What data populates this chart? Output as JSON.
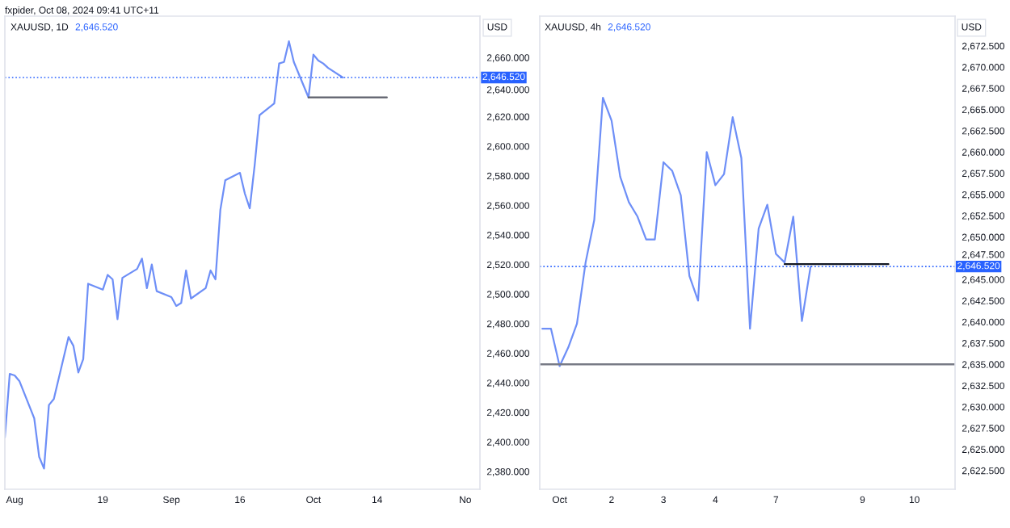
{
  "chart_data": [
    {
      "type": "line",
      "title": "XAUUSD, 1D",
      "subtitle": "2,646.520",
      "ylabel": "USD",
      "annotations": [
        "fxpider, Oct 08, 2024 09:41 UTC+11"
      ],
      "x": [
        "2024-07-30",
        "2024-07-31",
        "2024-08-01",
        "2024-08-02",
        "2024-08-05",
        "2024-08-06",
        "2024-08-07",
        "2024-08-08",
        "2024-08-09",
        "2024-08-12",
        "2024-08-13",
        "2024-08-14",
        "2024-08-15",
        "2024-08-16",
        "2024-08-19",
        "2024-08-20",
        "2024-08-21",
        "2024-08-22",
        "2024-08-23",
        "2024-08-26",
        "2024-08-27",
        "2024-08-28",
        "2024-08-29",
        "2024-08-30",
        "2024-09-02",
        "2024-09-03",
        "2024-09-04",
        "2024-09-05",
        "2024-09-06",
        "2024-09-09",
        "2024-09-10",
        "2024-09-11",
        "2024-09-12",
        "2024-09-13",
        "2024-09-16",
        "2024-09-17",
        "2024-09-18",
        "2024-09-19",
        "2024-09-20",
        "2024-09-23",
        "2024-09-24",
        "2024-09-25",
        "2024-09-26",
        "2024-09-27",
        "2024-09-30",
        "2024-10-01",
        "2024-10-02",
        "2024-10-03",
        "2024-10-04",
        "2024-10-07"
      ],
      "series": [
        {
          "color": "#6e8ff7",
          "values": [
            2403,
            2446,
            2445,
            2441,
            2416,
            2390,
            2382,
            2425,
            2429,
            2471,
            2465,
            2447,
            2456,
            2507,
            2503,
            2513,
            2510,
            2483,
            2511,
            2517,
            2524,
            2504,
            2520,
            2502,
            2498,
            2492,
            2494,
            2516,
            2497,
            2504,
            2516,
            2510,
            2557,
            2577,
            2582,
            2568,
            2558,
            2587,
            2621,
            2629,
            2656,
            2657,
            2671,
            2657,
            2633,
            2662,
            2658,
            2656,
            2653,
            2646.5
          ]
        },
        {
          "color": "#5d606b",
          "x": [
            "2024-09-30",
            "2024-10-16"
          ],
          "values": [
            2633,
            2633
          ]
        }
      ],
      "xlim": [
        "2024-07-30",
        "2024-11-04"
      ],
      "xticks": [
        {
          "value": "2024-08-01",
          "label": "Aug"
        },
        {
          "value": "2024-08-19",
          "label": "19"
        },
        {
          "value": "2024-09-02",
          "label": "Sep"
        },
        {
          "value": "2024-09-16",
          "label": "16"
        },
        {
          "value": "2024-10-01",
          "label": "Oct"
        },
        {
          "value": "2024-10-14",
          "label": "14"
        },
        {
          "value": "2024-11-01",
          "label": "No"
        }
      ],
      "ylim": [
        2368,
        2688
      ],
      "yticks": [
        {
          "value": 2380,
          "label": "2,380.000"
        },
        {
          "value": 2400,
          "label": "2,400.000"
        },
        {
          "value": 2420,
          "label": "2,420.000"
        },
        {
          "value": 2440,
          "label": "2,440.000"
        },
        {
          "value": 2460,
          "label": "2,460.000"
        },
        {
          "value": 2480,
          "label": "2,480.000"
        },
        {
          "value": 2500,
          "label": "2,500.000"
        },
        {
          "value": 2520,
          "label": "2,520.000"
        },
        {
          "value": 2540,
          "label": "2,540.000"
        },
        {
          "value": 2560,
          "label": "2,560.000"
        },
        {
          "value": 2580,
          "label": "2,580.000"
        },
        {
          "value": 2600,
          "label": "2,600.000"
        },
        {
          "value": 2620,
          "label": "2,620.000"
        },
        {
          "value": 2640,
          "label": "2,640.000"
        },
        {
          "value": 2660,
          "label": "2,660.000"
        }
      ],
      "ref_lines": [
        {
          "axis": "y",
          "value": 2646.52,
          "label": "2,646.520",
          "color": "#2962ff",
          "line_style": "dotted"
        }
      ]
    },
    {
      "type": "line",
      "title": "XAUUSD, 4h",
      "subtitle": "2,646.520",
      "ylabel": "USD",
      "categories": [
        null,
        null,
        "Oct",
        null,
        null,
        null,
        null,
        null,
        "2",
        null,
        null,
        null,
        null,
        null,
        "3",
        null,
        null,
        null,
        null,
        null,
        "4",
        null,
        null,
        null,
        null,
        null,
        null,
        "7",
        null,
        null,
        null,
        null,
        null,
        null,
        null,
        null,
        null,
        "9",
        null,
        null,
        null,
        null,
        null,
        "10",
        null,
        null,
        null,
        null
      ],
      "series": [
        {
          "color": "#6e8ff7",
          "values": [
            2639.2,
            2639.2,
            2634.8,
            2637,
            2639.8,
            2647,
            2652,
            2666.4,
            2663.7,
            2657.1,
            2654.1,
            2652.4,
            2649.7,
            2649.7,
            2658.8,
            2657.8,
            2654.9,
            2645.4,
            2642.5,
            2660,
            2656.1,
            2657.4,
            2664.1,
            2659.3,
            2639.2,
            2651,
            2653.8,
            2648,
            2647,
            2652.4,
            2640.1,
            2646.5,
            null,
            null,
            null,
            null,
            null,
            null,
            null,
            null,
            null,
            null,
            null,
            null,
            null,
            null,
            null,
            null
          ]
        },
        {
          "color": "#131722",
          "values": [
            null,
            null,
            null,
            null,
            null,
            null,
            null,
            null,
            null,
            null,
            null,
            null,
            null,
            null,
            null,
            null,
            null,
            null,
            null,
            null,
            null,
            null,
            null,
            null,
            null,
            null,
            null,
            null,
            2646.8,
            2646.8,
            2646.8,
            2646.8,
            2646.8,
            2646.8,
            2646.8,
            2646.8,
            2646.8,
            2646.8,
            2646.8,
            2646.8,
            2646.8,
            null,
            null,
            null,
            null,
            null,
            null,
            null
          ]
        }
      ],
      "ylim": [
        2620.3,
        2676
      ],
      "yticks": [
        {
          "value": 2622.5,
          "label": "2,622.500"
        },
        {
          "value": 2625,
          "label": "2,625.000"
        },
        {
          "value": 2627.5,
          "label": "2,627.500"
        },
        {
          "value": 2630,
          "label": "2,630.000"
        },
        {
          "value": 2632.5,
          "label": "2,632.500"
        },
        {
          "value": 2635,
          "label": "2,635.000"
        },
        {
          "value": 2637.5,
          "label": "2,637.500"
        },
        {
          "value": 2640,
          "label": "2,640.000"
        },
        {
          "value": 2642.5,
          "label": "2,642.500"
        },
        {
          "value": 2645,
          "label": "2,645.000"
        },
        {
          "value": 2647.5,
          "label": "2,647.500"
        },
        {
          "value": 2650,
          "label": "2,650.000"
        },
        {
          "value": 2652.5,
          "label": "2,652.500"
        },
        {
          "value": 2655,
          "label": "2,655.000"
        },
        {
          "value": 2657.5,
          "label": "2,657.500"
        },
        {
          "value": 2660,
          "label": "2,660.000"
        },
        {
          "value": 2662.5,
          "label": "2,662.500"
        },
        {
          "value": 2665,
          "label": "2,665.000"
        },
        {
          "value": 2667.5,
          "label": "2,667.500"
        },
        {
          "value": 2670,
          "label": "2,670.000"
        },
        {
          "value": 2672.5,
          "label": "2,672.500"
        }
      ],
      "ref_lines": [
        {
          "axis": "y",
          "value": 2646.52,
          "label": "2,646.520",
          "color": "#2962ff",
          "line_style": "dotted"
        },
        {
          "axis": "y",
          "value": 2635,
          "color": "#787b86",
          "line_style": "solid"
        }
      ]
    }
  ]
}
